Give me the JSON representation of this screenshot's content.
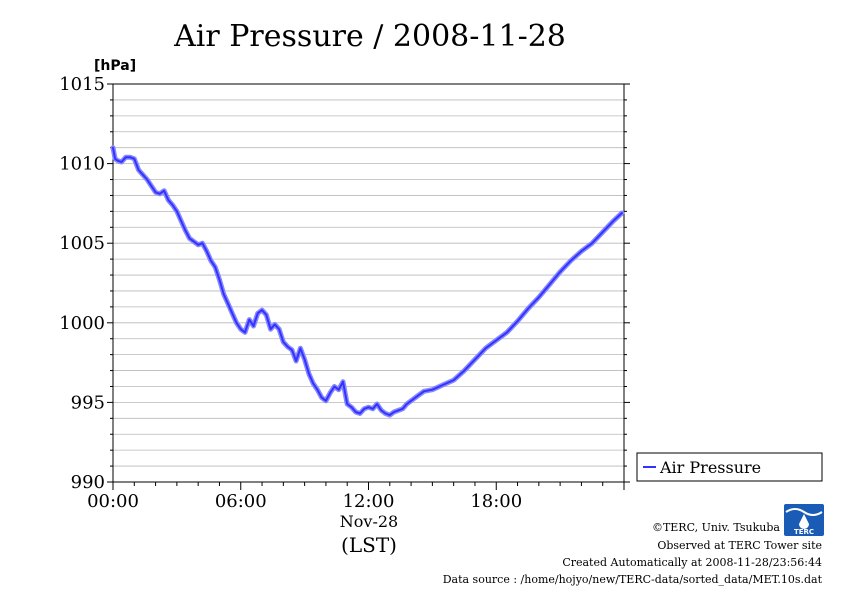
{
  "chart_data": {
    "type": "line",
    "title": "Air Pressure / 2008-11-28",
    "ylabel": "[hPa]",
    "ylim": [
      990,
      1015
    ],
    "yticks": [
      "990",
      "995",
      "1000",
      "1005",
      "1010",
      "1015"
    ],
    "xlim": [
      0,
      24
    ],
    "xticks": [
      "00:00",
      "06:00",
      "12:00",
      "18:00"
    ],
    "xsublabel": "Nov-28",
    "xunit": "(LST)",
    "grid": true,
    "legend_position": "right",
    "line_color": "#3333ff",
    "series": [
      {
        "name": "Air Pressure",
        "x": [
          0.0,
          0.1,
          0.2,
          0.4,
          0.6,
          0.8,
          1.0,
          1.2,
          1.4,
          1.6,
          1.8,
          2.0,
          2.2,
          2.4,
          2.6,
          2.8,
          3.0,
          3.2,
          3.4,
          3.6,
          3.8,
          4.0,
          4.2,
          4.4,
          4.6,
          4.8,
          5.0,
          5.2,
          5.4,
          5.6,
          5.8,
          6.0,
          6.2,
          6.4,
          6.6,
          6.8,
          7.0,
          7.2,
          7.4,
          7.6,
          7.8,
          8.0,
          8.2,
          8.4,
          8.6,
          8.8,
          9.0,
          9.2,
          9.4,
          9.6,
          9.8,
          10.0,
          10.2,
          10.4,
          10.6,
          10.8,
          11.0,
          11.2,
          11.4,
          11.6,
          11.8,
          12.0,
          12.2,
          12.4,
          12.6,
          12.8,
          13.0,
          13.2,
          13.4,
          13.6,
          13.8,
          14.0,
          14.3,
          14.6,
          15.0,
          15.5,
          16.0,
          16.5,
          17.0,
          17.5,
          18.0,
          18.5,
          19.0,
          19.5,
          20.0,
          20.5,
          21.0,
          21.5,
          22.0,
          22.5,
          23.0,
          23.5,
          23.9
        ],
        "values": [
          1011.0,
          1010.3,
          1010.2,
          1010.1,
          1010.4,
          1010.4,
          1010.3,
          1009.6,
          1009.3,
          1009.0,
          1008.6,
          1008.2,
          1008.1,
          1008.3,
          1007.7,
          1007.4,
          1007.0,
          1006.4,
          1005.8,
          1005.3,
          1005.1,
          1004.9,
          1005.0,
          1004.5,
          1003.9,
          1003.5,
          1002.7,
          1001.8,
          1001.2,
          1000.6,
          1000.0,
          999.6,
          999.4,
          1000.2,
          999.8,
          1000.6,
          1000.8,
          1000.5,
          999.6,
          999.9,
          999.6,
          998.8,
          998.5,
          998.3,
          997.6,
          998.4,
          997.7,
          996.8,
          996.2,
          995.8,
          995.3,
          995.1,
          995.6,
          996.0,
          995.8,
          996.3,
          994.9,
          994.7,
          994.4,
          994.3,
          994.6,
          994.7,
          994.6,
          994.9,
          994.5,
          994.3,
          994.2,
          994.4,
          994.5,
          994.6,
          994.9,
          995.1,
          995.4,
          995.7,
          995.8,
          996.1,
          996.4,
          997.0,
          997.7,
          998.4,
          998.9,
          999.4,
          1000.1,
          1000.9,
          1001.6,
          1002.4,
          1003.2,
          1003.9,
          1004.5,
          1005.0,
          1005.7,
          1006.4,
          1006.9
        ]
      }
    ]
  },
  "credits": {
    "copyright": "©TERC, Univ. Tsukuba",
    "observed": "Observed at TERC Tower site",
    "created": "Created Automatically at 2008-11-28/23:56:44",
    "source": "Data source : /home/hojyo/new/TERC-data/sorted_data/MET.10s.dat",
    "logo_text": "TERC"
  }
}
